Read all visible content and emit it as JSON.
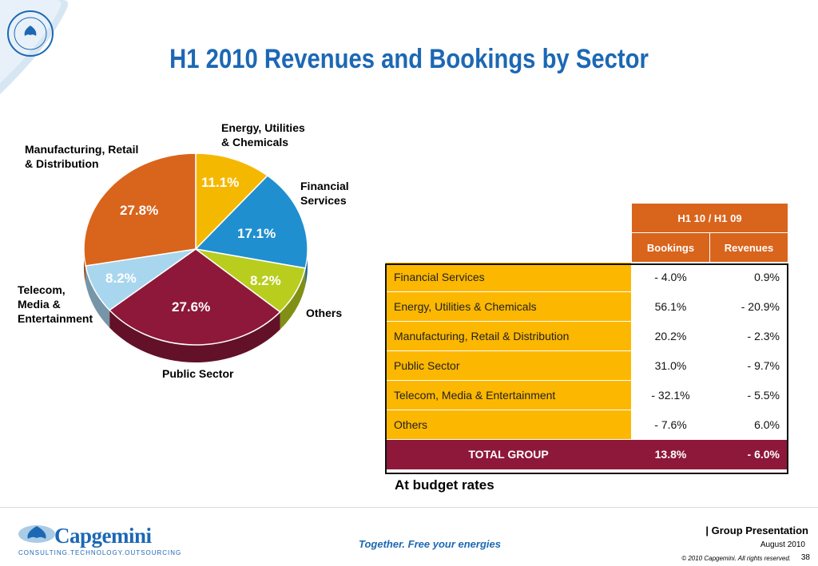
{
  "page": {
    "title": "H1 2010 Revenues and Bookings by Sector"
  },
  "chart_data": [
    {
      "type": "pie",
      "slices": [
        {
          "label": "Energy, Utilities\n& Chemicals",
          "value": 11.1,
          "display": "11.1%",
          "color": "#f5b800"
        },
        {
          "label": "Financial\nServices",
          "value": 17.1,
          "display": "17.1%",
          "color": "#1f8fcf"
        },
        {
          "label": "Others",
          "value": 8.2,
          "display": "8.2%",
          "color": "#b8cd1e"
        },
        {
          "label": "Public Sector",
          "value": 27.6,
          "display": "27.6%",
          "color": "#8e1839"
        },
        {
          "label": "Telecom,\nMedia &\nEntertainment",
          "value": 8.2,
          "display": "8.2%",
          "color": "#a8d6ee"
        },
        {
          "label": "Manufacturing, Retail\n& Distribution",
          "value": 27.8,
          "display": "27.8%",
          "color": "#d9641c"
        }
      ]
    },
    {
      "type": "table",
      "group_header": "H1 10 / H1 09",
      "columns": [
        "Bookings",
        "Revenues"
      ],
      "rows": [
        {
          "sector": "Financial Services",
          "bookings": "- 4.0%",
          "revenues": "0.9%"
        },
        {
          "sector": "Energy, Utilities & Chemicals",
          "bookings": "56.1%",
          "revenues": "- 20.9%"
        },
        {
          "sector": "Manufacturing, Retail & Distribution",
          "bookings": "20.2%",
          "revenues": "- 2.3%"
        },
        {
          "sector": "Public Sector",
          "bookings": "31.0%",
          "revenues": "- 9.7%"
        },
        {
          "sector": "Telecom, Media & Entertainment",
          "bookings": "- 32.1%",
          "revenues": "- 5.5%"
        },
        {
          "sector": "Others",
          "bookings": "- 7.6%",
          "revenues": "6.0%"
        }
      ],
      "total": {
        "sector": "TOTAL GROUP",
        "bookings": "13.8%",
        "revenues": "- 6.0%"
      },
      "note": "At budget rates"
    }
  ],
  "footer": {
    "company": "Capgemini",
    "company_tagline": "CONSULTING.TECHNOLOGY.OUTSOURCING",
    "slogan": "Together. Free your energies",
    "presentation": "| Group Presentation",
    "date": "August 2010",
    "copyright": "© 2010 Capgemini. All rights reserved.",
    "page_number": "38"
  },
  "colors": {
    "title": "#1c68b4",
    "header": "#d9641c",
    "sector_cell": "#fcb700",
    "total_row": "#8e1839"
  },
  "icons": {
    "logo": "capgemini-spades-logo",
    "corner": "blue-corner-seal"
  }
}
